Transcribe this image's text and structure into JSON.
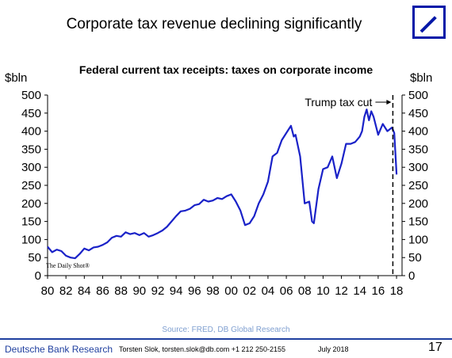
{
  "slide": {
    "title": "Corporate tax revenue declining significantly"
  },
  "logo": {
    "name": "Deutsche Bank logo",
    "color": "#0018a8"
  },
  "chart_data": {
    "type": "line",
    "title": "Federal current tax receipts: taxes on corporate income",
    "ylabel_left": "$bln",
    "ylabel_right": "$bln",
    "xlim": [
      1980,
      2018.6
    ],
    "ylim": [
      0,
      500
    ],
    "x_ticks": [
      "80",
      "82",
      "84",
      "86",
      "88",
      "90",
      "92",
      "94",
      "96",
      "98",
      "00",
      "02",
      "04",
      "06",
      "08",
      "10",
      "12",
      "14",
      "16",
      "18"
    ],
    "y_ticks": [
      "0",
      "50",
      "100",
      "150",
      "200",
      "250",
      "300",
      "350",
      "400",
      "450",
      "500"
    ],
    "line_color": "#1a22c8",
    "grid": false,
    "series": [
      {
        "name": "",
        "x": [
          1980,
          1980.5,
          1981,
          1981.5,
          1982,
          1982.5,
          1983,
          1983.5,
          1984,
          1984.5,
          1985,
          1985.5,
          1986,
          1986.5,
          1987,
          1987.5,
          1988,
          1988.5,
          1989,
          1989.5,
          1990,
          1990.5,
          1991,
          1991.5,
          1992,
          1992.5,
          1993,
          1993.5,
          1994,
          1994.5,
          1995,
          1995.5,
          1996,
          1996.5,
          1997,
          1997.5,
          1998,
          1998.5,
          1999,
          1999.5,
          2000,
          2000.5,
          2001,
          2001.5,
          2002,
          2002.5,
          2003,
          2003.5,
          2004,
          2004.5,
          2005,
          2005.5,
          2006,
          2006.5,
          2006.8,
          2007,
          2007.5,
          2008,
          2008.5,
          2008.8,
          2009,
          2009.5,
          2010,
          2010.5,
          2011,
          2011.5,
          2012,
          2012.5,
          2013,
          2013.5,
          2014,
          2014.25,
          2014.5,
          2014.75,
          2015,
          2015.25,
          2015.5,
          2016,
          2016.5,
          2017,
          2017.5,
          2017.75,
          2018
        ],
        "values": [
          80,
          65,
          72,
          68,
          55,
          50,
          48,
          60,
          75,
          70,
          78,
          80,
          85,
          92,
          105,
          110,
          108,
          120,
          115,
          118,
          112,
          118,
          108,
          112,
          118,
          125,
          135,
          150,
          165,
          178,
          180,
          185,
          195,
          198,
          210,
          205,
          208,
          215,
          212,
          220,
          225,
          205,
          180,
          140,
          145,
          165,
          200,
          225,
          260,
          330,
          340,
          375,
          395,
          415,
          385,
          390,
          330,
          200,
          205,
          150,
          145,
          240,
          295,
          300,
          330,
          270,
          310,
          365,
          365,
          370,
          385,
          400,
          440,
          460,
          430,
          455,
          440,
          390,
          420,
          400,
          410,
          395,
          280
        ]
      }
    ],
    "annotations": [
      {
        "text": "Trump tax cut",
        "x": 2017.6
      }
    ],
    "watermark": "The Daily Shot®"
  },
  "source": "Source: FRED, DB Global Research",
  "footer": {
    "org": "Deutsche Bank Research",
    "author": "Torsten Slok, torsten.slok@db.com  +1 212 250-2155",
    "date": "July 2018",
    "page": "17"
  }
}
